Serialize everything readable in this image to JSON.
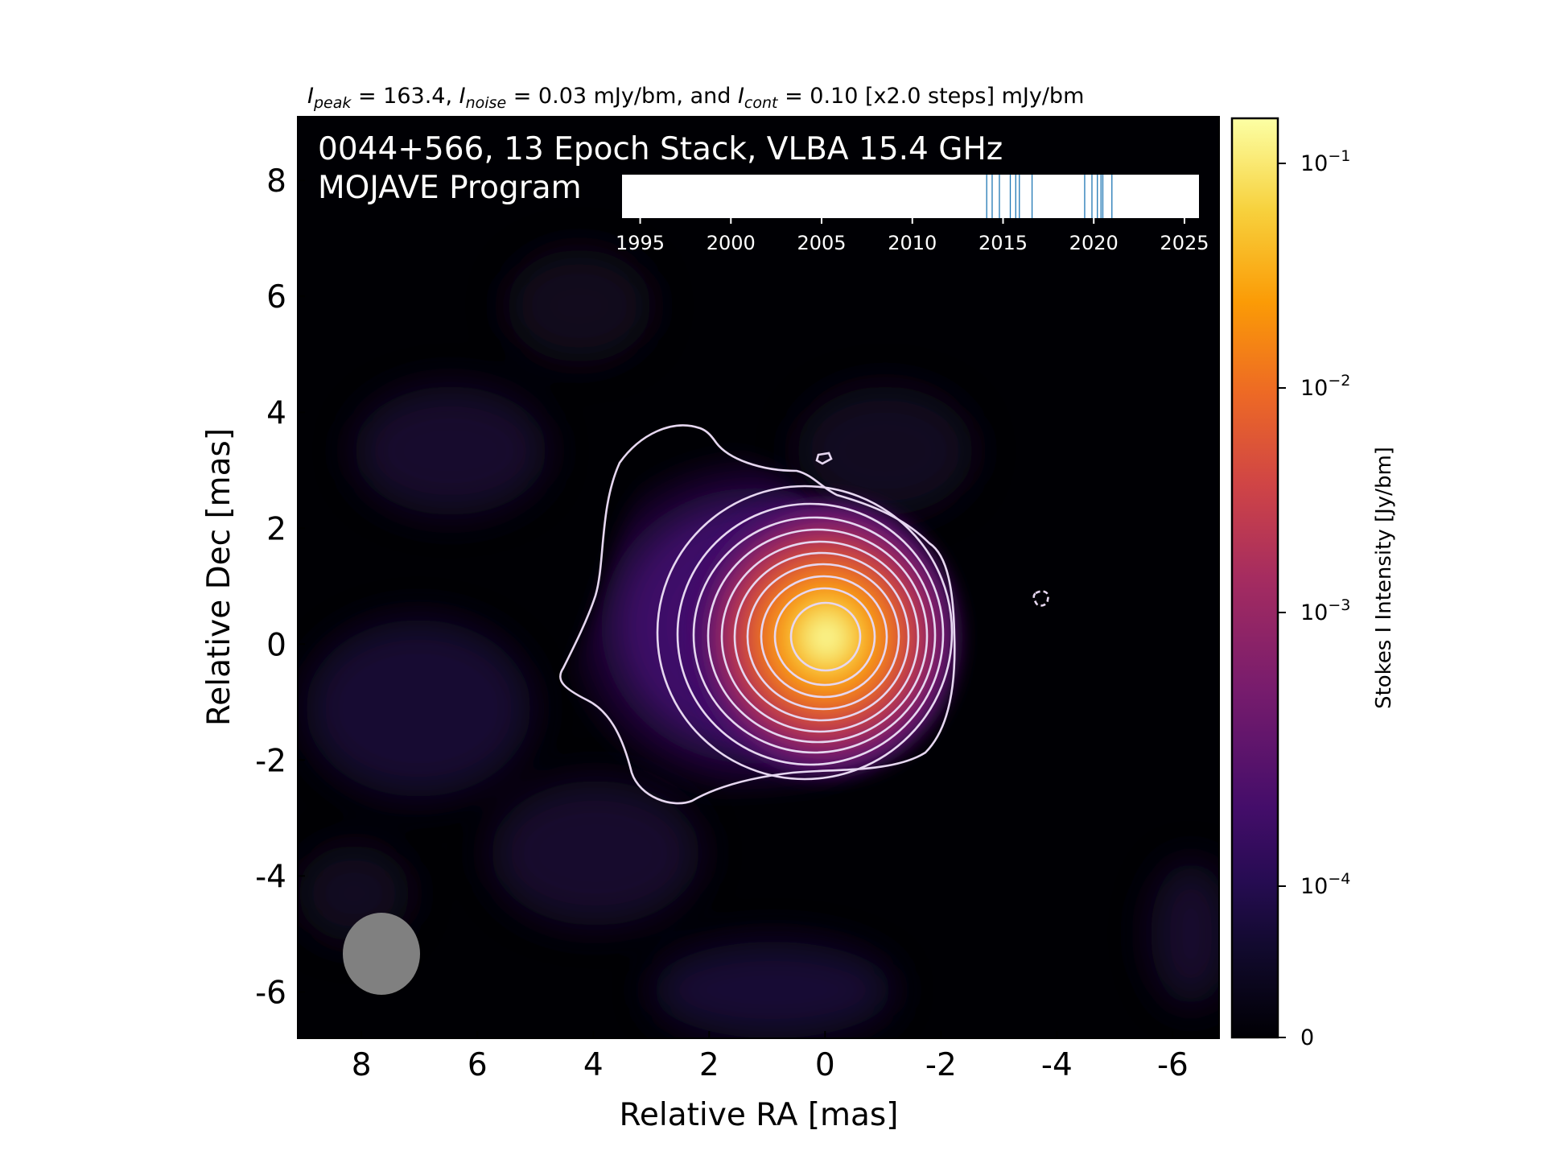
{
  "chart_data": {
    "type": "heatmap",
    "header": {
      "peak_label": "I",
      "peak_sub": "peak",
      "peak_text": " = 163.4, ",
      "noise_label": "I",
      "noise_sub": "noise",
      "noise_text": " = 0.03 mJy/bm, and ",
      "cont_label": "I",
      "cont_sub": "cont",
      "cont_text": " = 0.10 [x2.0 steps] mJy/bm"
    },
    "title_line1": "0044+566, 13 Epoch Stack, VLBA 15.4 GHz",
    "title_line2": "MOJAVE Program",
    "xlabel": "Relative RA [mas]",
    "ylabel": "Relative Dec [mas]",
    "xlim": [
      9.1,
      -6.8
    ],
    "ylim": [
      -6.8,
      9.1
    ],
    "x_ticks": [
      8,
      6,
      4,
      2,
      0,
      -2,
      -4,
      -6
    ],
    "x_tick_labels": [
      "8",
      "6",
      "4",
      "2",
      "0",
      "-2",
      "-4",
      "-6"
    ],
    "y_ticks": [
      8,
      6,
      4,
      2,
      0,
      -2,
      -4,
      -6
    ],
    "y_tick_labels": [
      "8",
      "6",
      "4",
      "2",
      "0",
      "-2",
      "-4",
      "-6"
    ],
    "colorbar": {
      "label": "Stokes I Intensity [Jy/bm]",
      "scale": "log",
      "ticks": [
        {
          "value": 0,
          "base": "0",
          "exp": ""
        },
        {
          "value": 0.0001,
          "base": "10",
          "exp": "−4"
        },
        {
          "value": 0.001,
          "base": "10",
          "exp": "−3"
        },
        {
          "value": 0.01,
          "base": "10",
          "exp": "−2"
        },
        {
          "value": 0.1,
          "base": "10",
          "exp": "−1"
        }
      ],
      "colormap": [
        "#000004",
        "#1b0c41",
        "#4a0c6b",
        "#781c6d",
        "#a52c60",
        "#cf4446",
        "#ed6925",
        "#fb9b06",
        "#f7d13d",
        "#fcffa4"
      ]
    },
    "peak_position": [
      0,
      0
    ],
    "contour_levels_count": 12,
    "beam": {
      "center_ra": 7.6,
      "center_dec": -5.4,
      "major_mas": 1.4,
      "minor_mas": 1.3,
      "color": "#808080"
    },
    "epoch_timeline": {
      "ticks": [
        1995,
        2000,
        2005,
        2010,
        2015,
        2020,
        2025
      ],
      "xlim": [
        1994,
        2025.8
      ],
      "epochs": [
        2014.1,
        2014.4,
        2014.8,
        2015.4,
        2015.7,
        2015.9,
        2016.6,
        2019.5,
        2019.9,
        2020.2,
        2020.4,
        2020.5,
        2021.0
      ],
      "line_color": "#1f77b4"
    }
  }
}
